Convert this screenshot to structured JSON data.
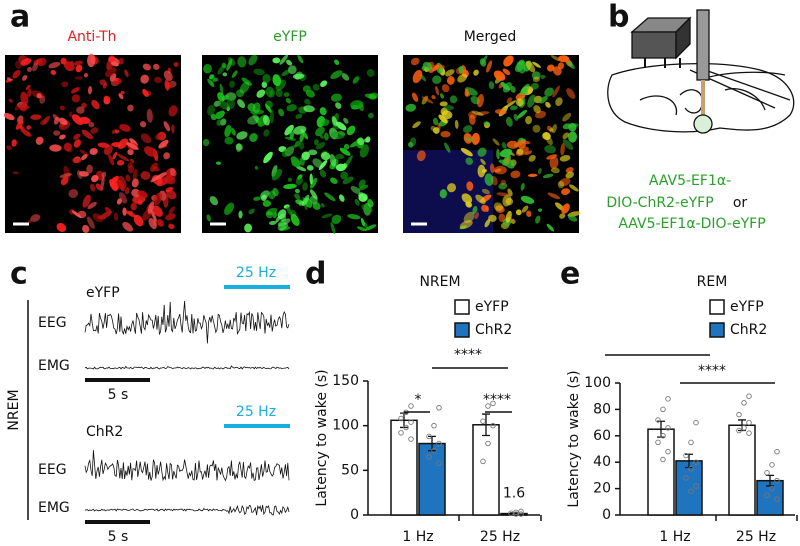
{
  "panel_a": {
    "label": "a",
    "images": [
      "Anti-Th",
      "eYFP",
      "Merged"
    ]
  },
  "panel_b": {
    "label": "b",
    "virus": [
      "AAV5-EF1α-",
      "DIO-ChR2-eYFP",
      "or",
      "AAV5-EF1α-DIO-eYFP"
    ]
  },
  "panel_c": {
    "label": "c",
    "state": "NREM",
    "groups": [
      {
        "name": "eYFP",
        "stim": "25 Hz",
        "eeg": "EEG",
        "emg": "EMG",
        "scale": "5 s"
      },
      {
        "name": "ChR2",
        "stim": "25 Hz",
        "eeg": "EEG",
        "emg": "EMG",
        "scale": "5 s"
      }
    ]
  },
  "chart_data": [
    {
      "type": "bar",
      "panel": "d",
      "title": "NREM",
      "ylabel": "Latency to wake (s)",
      "categories": [
        "1 Hz",
        "25 Hz"
      ],
      "ylim": [
        0,
        150
      ],
      "yticks": [
        0,
        50,
        100,
        150
      ],
      "legend": "upper right",
      "series": [
        {
          "name": "eYFP",
          "color": "#ffffff",
          "values": [
            106,
            101
          ],
          "errors": [
            8,
            12
          ],
          "points": [
            [
              122,
              115,
              108,
              104,
              98,
              92,
              85
            ],
            [
              125,
              122,
              105,
              100,
              80,
              60
            ]
          ]
        },
        {
          "name": "ChR2",
          "color": "#1f74bf",
          "values": [
            80,
            1.6
          ],
          "errors": [
            8,
            0.8
          ],
          "value_labels": [
            null,
            "1.6"
          ],
          "points": [
            [
              120,
              100,
              88,
              80,
              72,
              65,
              58
            ],
            [
              4,
              3,
              2,
              1,
              1
            ]
          ]
        }
      ],
      "annotations": [
        "*",
        "****",
        "****"
      ]
    },
    {
      "type": "bar",
      "panel": "e",
      "title": "REM",
      "ylabel": "Latency to wake (s)",
      "categories": [
        "1 Hz",
        "25 Hz"
      ],
      "ylim": [
        0,
        100
      ],
      "yticks": [
        0,
        20,
        40,
        60,
        80,
        100
      ],
      "legend": "upper right",
      "series": [
        {
          "name": "eYFP",
          "color": "#ffffff",
          "values": [
            65,
            68
          ],
          "errors": [
            6,
            4
          ],
          "points": [
            [
              88,
              80,
              72,
              66,
              60,
              55,
              48,
              42
            ],
            [
              90,
              85,
              76,
              70,
              66,
              64,
              62
            ]
          ]
        },
        {
          "name": "ChR2",
          "color": "#1f74bf",
          "values": [
            41,
            26
          ],
          "errors": [
            5,
            4
          ],
          "points": [
            [
              70,
              55,
              45,
              40,
              35,
              28,
              22,
              18
            ],
            [
              48,
              38,
              32,
              26,
              20,
              15,
              12
            ]
          ]
        }
      ],
      "annotations": [
        "****"
      ]
    }
  ]
}
